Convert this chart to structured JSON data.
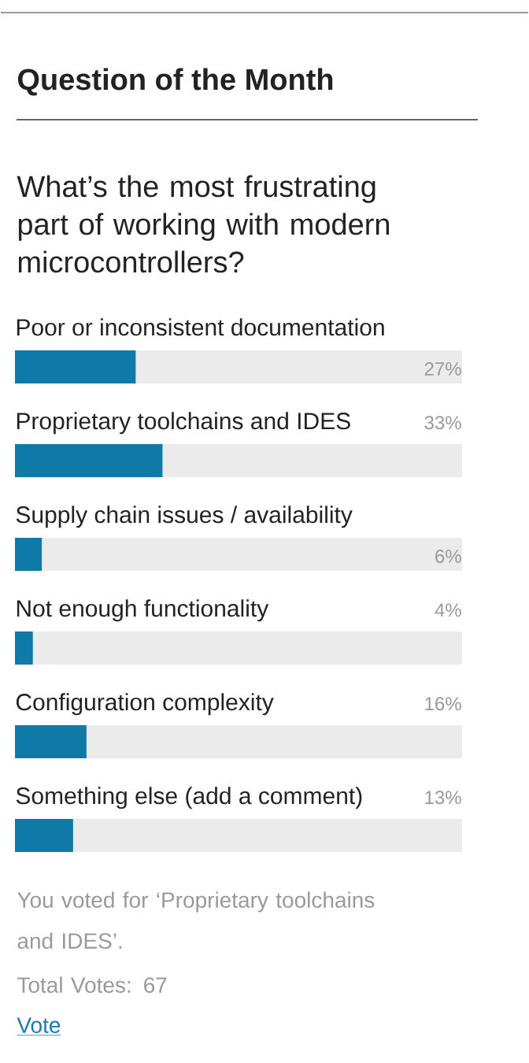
{
  "chart_data": {
    "type": "bar",
    "orientation": "horizontal",
    "title": "Question of the Month",
    "subtitle": "What’s the most frustrating part of working with modern microcontrollers?",
    "categories": [
      "Poor or inconsistent documentation",
      "Proprietary toolchains and IDES",
      "Supply chain issues / availability",
      "Not enough functionality",
      "Configuration complexity",
      "Something else (add a comment)"
    ],
    "values": [
      27,
      33,
      6,
      4,
      16,
      13
    ],
    "value_labels": [
      "27%",
      "33%",
      "6%",
      "4%",
      "16%",
      "13%"
    ],
    "color": "#0f7aa8",
    "xlim": [
      0,
      100
    ],
    "annotations": [
      "You voted for ‘Proprietary toolchains and IDES’.",
      "Total Votes: 67",
      "Vote"
    ]
  }
}
